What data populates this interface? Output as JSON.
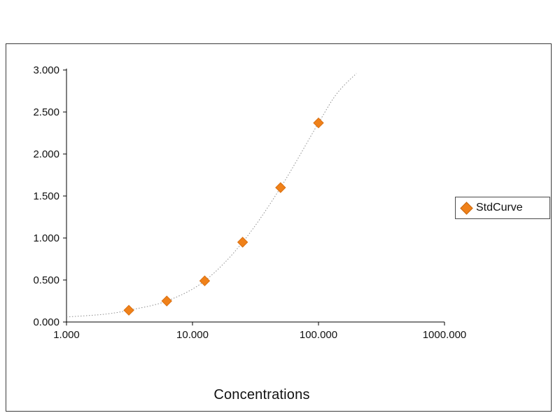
{
  "chart_data": {
    "type": "scatter",
    "title": "",
    "xlabel": "Concentrations",
    "ylabel": "",
    "x_scale": "log10",
    "xlim": [
      1,
      1000
    ],
    "ylim": [
      0,
      3
    ],
    "grid": false,
    "legend_position": "right",
    "x_ticks": [
      {
        "v": 1,
        "label": "1.000"
      },
      {
        "v": 10,
        "label": "10.000"
      },
      {
        "v": 100,
        "label": "100.000"
      },
      {
        "v": 1000,
        "label": "1000.000"
      }
    ],
    "y_ticks": [
      {
        "v": 0.0,
        "label": "0.000"
      },
      {
        "v": 0.5,
        "label": "0.500"
      },
      {
        "v": 1.0,
        "label": "1.000"
      },
      {
        "v": 1.5,
        "label": "1.500"
      },
      {
        "v": 2.0,
        "label": "2.000"
      },
      {
        "v": 2.5,
        "label": "2.500"
      },
      {
        "v": 3.0,
        "label": "3.000"
      }
    ],
    "series": [
      {
        "name": "StdCurve",
        "marker": "diamond",
        "marker_color": "#F08119",
        "marker_edge_color": "#D96F10",
        "x": [
          3.125,
          6.25,
          12.5,
          25,
          50,
          100
        ],
        "y": [
          0.14,
          0.25,
          0.49,
          0.95,
          1.6,
          2.37
        ]
      }
    ],
    "fit_curve": {
      "style": "dotted",
      "color": "#8f8f8f",
      "x": [
        1,
        1.6,
        2.2,
        3.125,
        6.25,
        12.5,
        25,
        50,
        100,
        140,
        200
      ],
      "y": [
        0.06,
        0.08,
        0.1,
        0.14,
        0.25,
        0.49,
        0.95,
        1.6,
        2.37,
        2.72,
        2.96
      ]
    }
  },
  "legend": {
    "label": "StdCurve",
    "marker_color": "#F08119",
    "marker_edge_color": "#C9680E"
  },
  "colors": {
    "axis": "#000000",
    "frame_border": "#3c3c3c",
    "background": "#ffffff"
  }
}
